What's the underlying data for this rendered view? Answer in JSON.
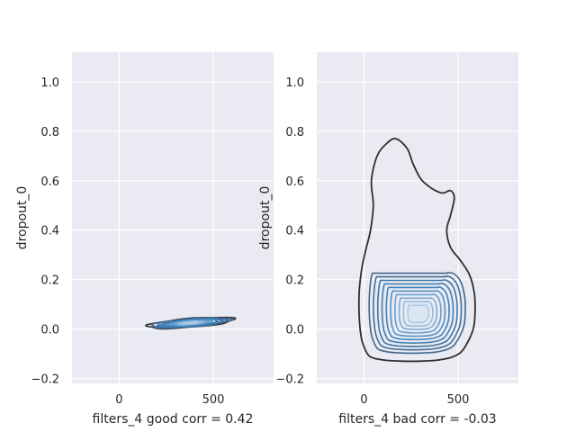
{
  "chart_data": [
    {
      "type": "kde_contour",
      "xlabel": "filters_4 good corr = 0.42",
      "ylabel": "dropout_0",
      "xlim": [
        -250,
        820
      ],
      "ylim": [
        -0.22,
        1.12
      ],
      "xticks": [
        "0",
        "500"
      ],
      "yticks": [
        "−0.2",
        "0.0",
        "0.2",
        "0.4",
        "0.6",
        "0.8",
        "1.0"
      ],
      "xtick_values": [
        0,
        500
      ],
      "ytick_values": [
        -0.2,
        0.0,
        0.2,
        0.4,
        0.6,
        0.8,
        1.0
      ],
      "grid": true,
      "density": {
        "center_x": 380,
        "center_y": 0.025,
        "spread_x": 230,
        "spread_y": 0.018,
        "slope_dy_per_dx": 6e-05,
        "levels": 10
      }
    },
    {
      "type": "kde_contour",
      "xlabel": "filters_4 bad corr = -0.03",
      "ylabel": "dropout_0",
      "xlim": [
        -250,
        820
      ],
      "ylim": [
        -0.22,
        1.12
      ],
      "xticks": [
        "0",
        "500"
      ],
      "yticks": [
        "−0.2",
        "0.0",
        "0.2",
        "0.4",
        "0.6",
        "0.8",
        "1.0"
      ],
      "xtick_values": [
        0,
        500
      ],
      "ytick_values": [
        -0.2,
        0.0,
        0.2,
        0.4,
        0.6,
        0.8,
        1.0
      ],
      "grid": true,
      "density": {
        "center_x": 290,
        "center_y": 0.06,
        "outer_contour": [
          [
            0,
            -0.07
          ],
          [
            30,
            -0.11
          ],
          [
            100,
            -0.125
          ],
          [
            200,
            -0.13
          ],
          [
            300,
            -0.13
          ],
          [
            400,
            -0.125
          ],
          [
            480,
            -0.11
          ],
          [
            530,
            -0.08
          ],
          [
            580,
            0.0
          ],
          [
            590,
            0.08
          ],
          [
            585,
            0.15
          ],
          [
            560,
            0.22
          ],
          [
            510,
            0.28
          ],
          [
            460,
            0.33
          ],
          [
            440,
            0.4
          ],
          [
            460,
            0.46
          ],
          [
            480,
            0.53
          ],
          [
            460,
            0.56
          ],
          [
            420,
            0.55
          ],
          [
            380,
            0.56
          ],
          [
            340,
            0.58
          ],
          [
            300,
            0.61
          ],
          [
            260,
            0.67
          ],
          [
            230,
            0.73
          ],
          [
            170,
            0.77
          ],
          [
            120,
            0.75
          ],
          [
            70,
            0.7
          ],
          [
            40,
            0.6
          ],
          [
            50,
            0.5
          ],
          [
            35,
            0.4
          ],
          [
            10,
            0.32
          ],
          [
            -10,
            0.25
          ],
          [
            -25,
            0.15
          ],
          [
            -25,
            0.05
          ],
          [
            -15,
            -0.03
          ]
        ],
        "inner_rings": 10
      }
    }
  ],
  "colors": {
    "axes_bg": "#eaeaf2",
    "grid": "#ffffff",
    "outer_line": "#2f2f2f",
    "contour_dark": "#3f5f80",
    "contour_mid": "#3c84be",
    "contour_light": "#a9cbe6",
    "fill_light": "#dbe6f1"
  }
}
